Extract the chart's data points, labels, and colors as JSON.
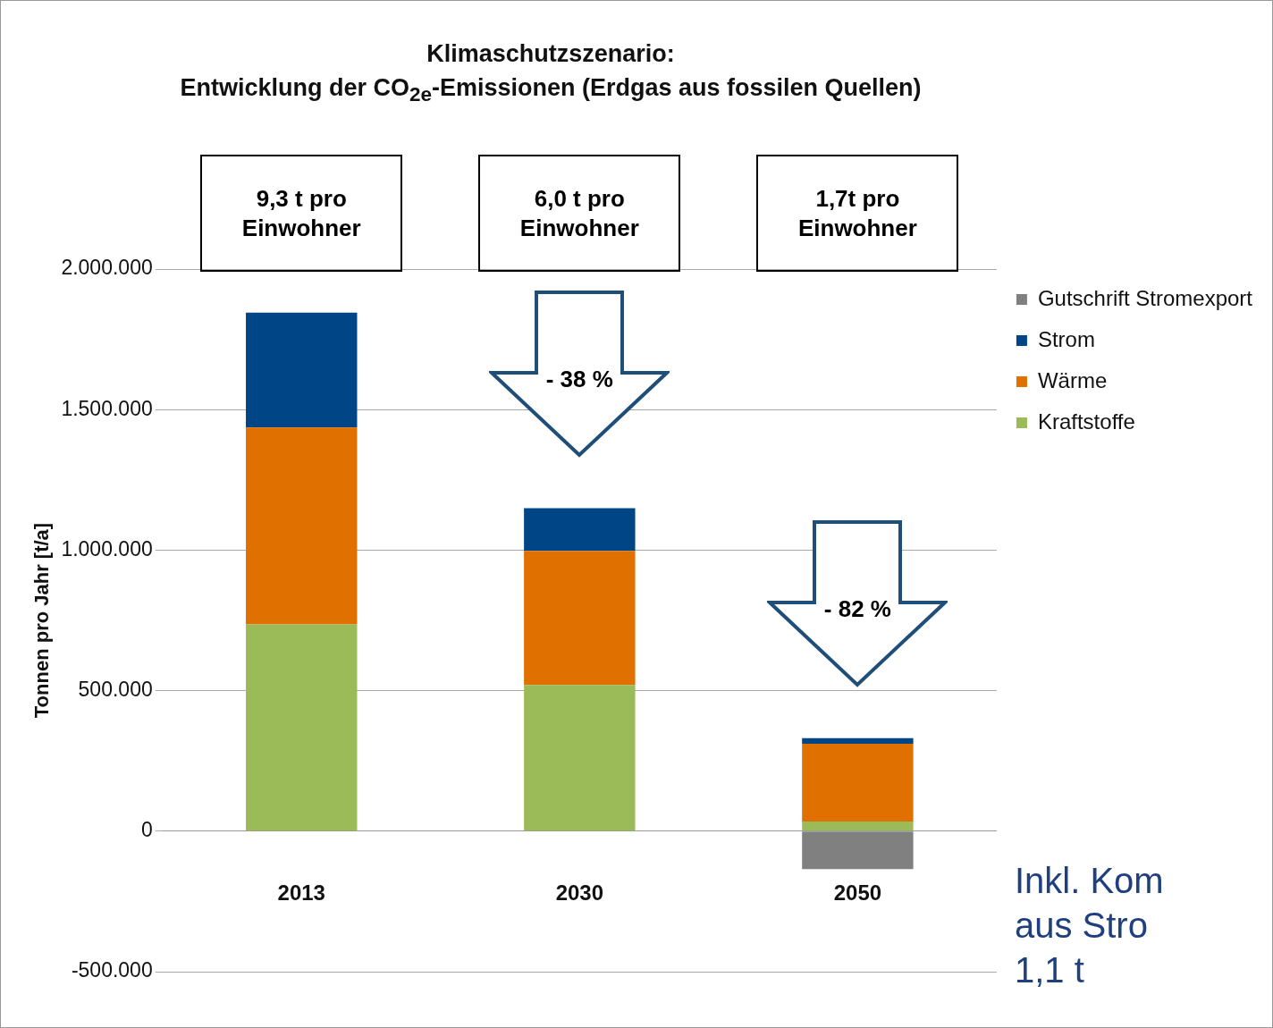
{
  "chart_data": {
    "type": "bar",
    "title": "Klimaschutzszenario:",
    "subtitle": "Entwicklung der CO$_{2e}$-Emissionen (Erdgas aus fossilen Quellen)",
    "ylabel": "Tonnen pro Jahr [t/a]",
    "categories": [
      "2013",
      "2030",
      "2050"
    ],
    "stacked": true,
    "series": [
      {
        "name": "Kraftstoffe",
        "color": "#9bbb59",
        "values": [
          736000,
          520000,
          34000
        ]
      },
      {
        "name": "Wärme",
        "color": "#e07000",
        "values": [
          700000,
          477000,
          277000
        ]
      },
      {
        "name": "Strom",
        "color": "#004586",
        "values": [
          409000,
          152000,
          20000
        ]
      },
      {
        "name": "Gutschrift Stromexport",
        "color": "#808080",
        "values": [
          null,
          null,
          -135000
        ]
      }
    ],
    "ylim": [
      -500000,
      2000000
    ],
    "yticks": [
      {
        "value": -500000,
        "label": "-500.000"
      },
      0,
      {
        "value": 500000,
        "label": "500.000"
      },
      {
        "value": 1000000,
        "label": "1.000.000"
      },
      {
        "value": 1500000,
        "label": "1.500.000"
      },
      {
        "value": 2000000,
        "label": "2.000.000"
      }
    ],
    "grid": "y",
    "legend": "right",
    "annotations": [
      "9,3 t pro Einwohner",
      "6,0 t pro Einwohner",
      "1,7t pro Einwohner",
      "- 38 %",
      "- 82 %",
      "Inkl. Kom aus Stro 1,1 t"
    ]
  }
}
